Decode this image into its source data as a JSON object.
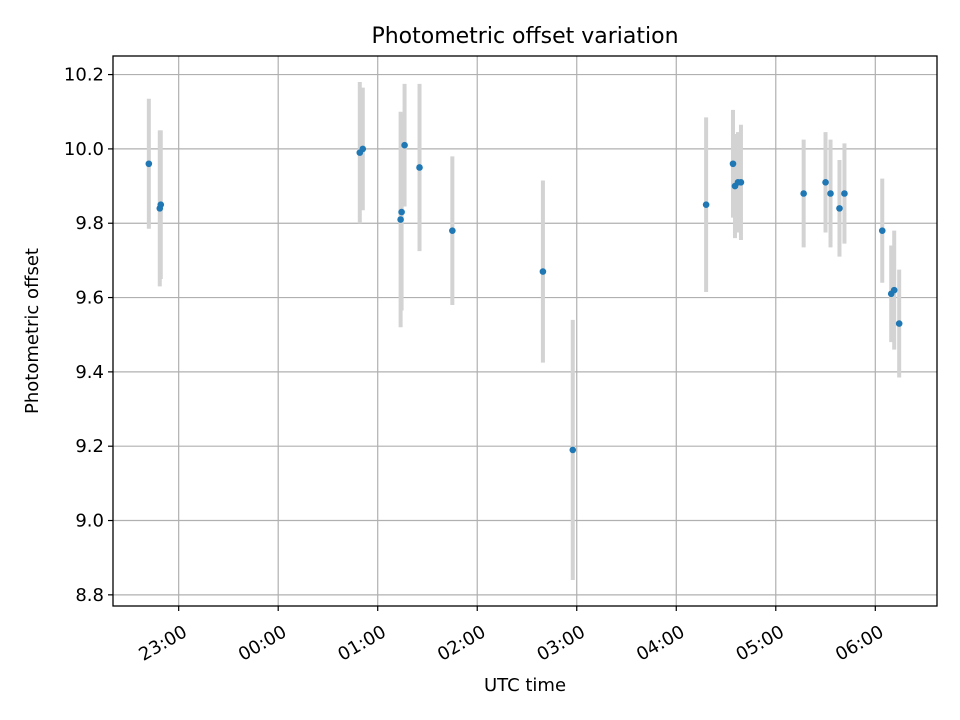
{
  "chart_data": {
    "type": "scatter",
    "title": "Photometric offset variation",
    "xlabel": "UTC time",
    "ylabel": "Photometric offset",
    "xlim": [
      22.34,
      30.62
    ],
    "ylim": [
      8.77,
      10.25
    ],
    "y_ticks": [
      8.8,
      9.0,
      9.2,
      9.4,
      9.6,
      9.8,
      10.0,
      10.2
    ],
    "y_tick_labels": [
      "8.8",
      "9.0",
      "9.2",
      "9.4",
      "9.6",
      "9.8",
      "10.0",
      "10.2"
    ],
    "x_ticks": [
      23,
      24,
      25,
      26,
      27,
      28,
      29,
      30
    ],
    "x_tick_labels": [
      "23:00",
      "00:00",
      "01:00",
      "02:00",
      "03:00",
      "04:00",
      "05:00",
      "06:00"
    ],
    "grid": true,
    "marker_color": "#1f77b4",
    "errorbar_color": "#d3d3d3",
    "points": [
      {
        "x": 22.7,
        "y": 9.96,
        "err": 0.175
      },
      {
        "x": 22.81,
        "y": 9.84,
        "err": 0.21
      },
      {
        "x": 22.82,
        "y": 9.85,
        "err": 0.2
      },
      {
        "x": 24.82,
        "y": 9.99,
        "err": 0.19
      },
      {
        "x": 24.85,
        "y": 10.0,
        "err": 0.165
      },
      {
        "x": 25.23,
        "y": 9.81,
        "err": 0.29
      },
      {
        "x": 25.24,
        "y": 9.83,
        "err": 0.265
      },
      {
        "x": 25.27,
        "y": 10.01,
        "err": 0.165
      },
      {
        "x": 25.42,
        "y": 9.95,
        "err": 0.225
      },
      {
        "x": 25.75,
        "y": 9.78,
        "err": 0.2
      },
      {
        "x": 26.66,
        "y": 9.67,
        "err": 0.245
      },
      {
        "x": 26.96,
        "y": 9.19,
        "err": 0.35
      },
      {
        "x": 28.3,
        "y": 9.85,
        "err": 0.235
      },
      {
        "x": 28.57,
        "y": 9.96,
        "err": 0.145
      },
      {
        "x": 28.59,
        "y": 9.9,
        "err": 0.14
      },
      {
        "x": 28.62,
        "y": 9.91,
        "err": 0.135
      },
      {
        "x": 28.65,
        "y": 9.91,
        "err": 0.155
      },
      {
        "x": 29.28,
        "y": 9.88,
        "err": 0.145
      },
      {
        "x": 29.5,
        "y": 9.91,
        "err": 0.135
      },
      {
        "x": 29.55,
        "y": 9.88,
        "err": 0.145
      },
      {
        "x": 29.64,
        "y": 9.84,
        "err": 0.13
      },
      {
        "x": 29.69,
        "y": 9.88,
        "err": 0.135
      },
      {
        "x": 30.07,
        "y": 9.78,
        "err": 0.14
      },
      {
        "x": 30.16,
        "y": 9.61,
        "err": 0.13
      },
      {
        "x": 30.19,
        "y": 9.62,
        "err": 0.16
      },
      {
        "x": 30.24,
        "y": 9.53,
        "err": 0.145
      }
    ]
  }
}
